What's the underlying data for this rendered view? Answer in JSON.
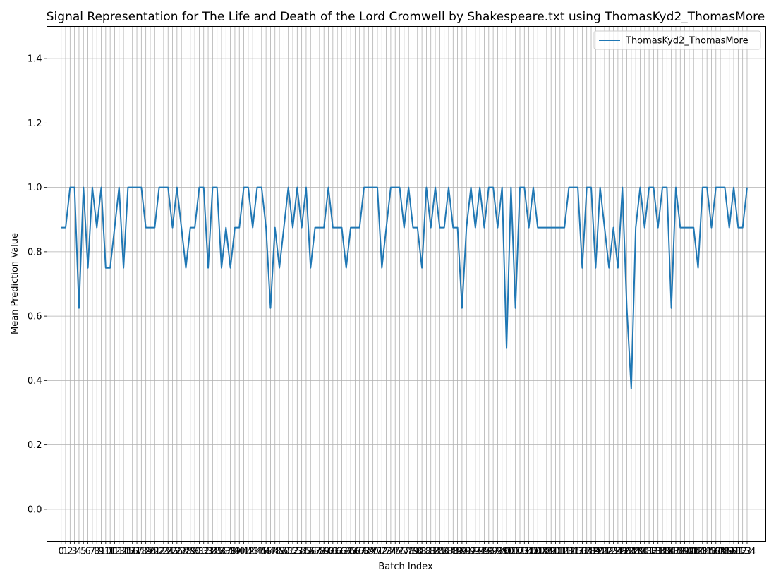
{
  "chart_data": {
    "type": "line",
    "title": "Signal Representation for The Life and Death of the Lord Cromwell by Shakespeare.txt using ThomasKyd2_ThomasMore",
    "xlabel": "Batch Index",
    "ylabel": "Mean Prediction Value",
    "xlim": [
      -3.2,
      158.2
    ],
    "ylim": [
      -0.1,
      1.5
    ],
    "yticks": [
      "0.0",
      "0.2",
      "0.4",
      "0.6",
      "0.8",
      "1.0",
      "1.2",
      "1.4"
    ],
    "grid": true,
    "legend_position": "top-right",
    "series": [
      {
        "name": "ThomasKyd2_ThomasMore",
        "color": "#1f77b4",
        "values": [
          0.875,
          0.875,
          1.0,
          1.0,
          0.625,
          1.0,
          0.75,
          1.0,
          0.875,
          1.0,
          0.75,
          0.75,
          0.875,
          1.0,
          0.75,
          1.0,
          1.0,
          1.0,
          1.0,
          0.875,
          0.875,
          0.875,
          1.0,
          1.0,
          1.0,
          0.875,
          1.0,
          0.875,
          0.75,
          0.875,
          0.875,
          1.0,
          1.0,
          0.75,
          1.0,
          1.0,
          0.75,
          0.875,
          0.75,
          0.875,
          0.875,
          1.0,
          1.0,
          0.875,
          1.0,
          1.0,
          0.875,
          0.625,
          0.875,
          0.75,
          0.875,
          1.0,
          0.875,
          1.0,
          0.875,
          1.0,
          0.75,
          0.875,
          0.875,
          0.875,
          1.0,
          0.875,
          0.875,
          0.875,
          0.75,
          0.875,
          0.875,
          0.875,
          1.0,
          1.0,
          1.0,
          1.0,
          0.75,
          0.875,
          1.0,
          1.0,
          1.0,
          0.875,
          1.0,
          0.875,
          0.875,
          0.75,
          1.0,
          0.875,
          1.0,
          0.875,
          0.875,
          1.0,
          0.875,
          0.875,
          0.625,
          0.875,
          1.0,
          0.875,
          1.0,
          0.875,
          1.0,
          1.0,
          0.875,
          1.0,
          0.5,
          1.0,
          0.625,
          1.0,
          1.0,
          0.875,
          1.0,
          0.875,
          0.875,
          0.875,
          0.875,
          0.875,
          0.875,
          0.875,
          1.0,
          1.0,
          1.0,
          0.75,
          1.0,
          1.0,
          0.75,
          1.0,
          0.875,
          0.75,
          0.875,
          0.75,
          1.0,
          0.625,
          0.375,
          0.875,
          1.0,
          0.875,
          1.0,
          1.0,
          0.875,
          1.0,
          1.0,
          0.625,
          1.0,
          0.875,
          0.875,
          0.875,
          0.875,
          0.75,
          1.0,
          1.0,
          0.875,
          1.0,
          1.0,
          1.0,
          0.875,
          1.0,
          0.875,
          0.875,
          1.0
        ]
      }
    ]
  }
}
